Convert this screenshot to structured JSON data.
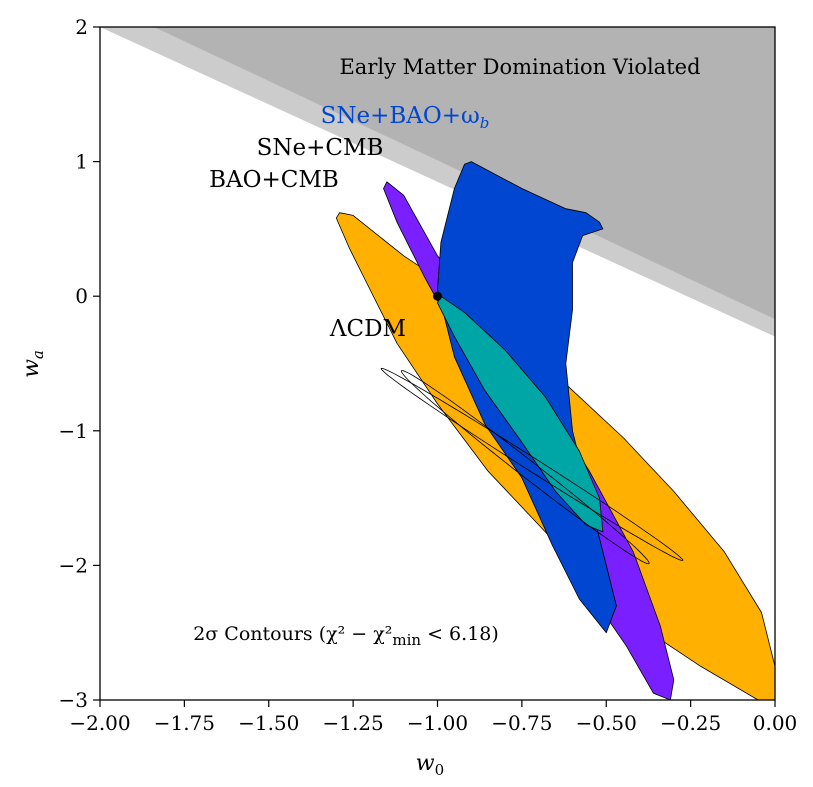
{
  "chart_data": {
    "type": "contour",
    "xlabel": "w",
    "xlabel_sub": "0",
    "ylabel": "w",
    "ylabel_sub": "a",
    "xlim": [
      -2.0,
      0.0
    ],
    "ylim": [
      -3,
      2
    ],
    "xticks": [
      -2.0,
      -1.75,
      -1.5,
      -1.25,
      -1.0,
      -0.75,
      -0.5,
      -0.25,
      0.0
    ],
    "xtick_labels": [
      "−2.00",
      "−1.75",
      "−1.50",
      "−1.25",
      "−1.00",
      "−0.75",
      "−0.50",
      "−0.25",
      "0.00"
    ],
    "yticks": [
      -3,
      -2,
      -1,
      0,
      1,
      2
    ],
    "ytick_labels": [
      "−3",
      "−2",
      "−1",
      "0",
      "1",
      "2"
    ],
    "excluded_region": {
      "label": "Early Matter Domination Violated",
      "light_boundary": [
        [
          -2.0,
          2.0
        ],
        [
          0.0,
          -0.3
        ]
      ],
      "dark_boundary": [
        [
          -1.84,
          2.0
        ],
        [
          0.0,
          -0.17
        ]
      ],
      "light_color": "#cccccc",
      "dark_color": "#b3b3b3"
    },
    "series": [
      {
        "name": "BAO+CMB",
        "color": "#ffb000",
        "polygon": [
          [
            -1.29,
            0.62
          ],
          [
            -1.25,
            0.6
          ],
          [
            -1.1,
            0.3
          ],
          [
            -0.92,
            0.0
          ],
          [
            -0.75,
            -0.35
          ],
          [
            -0.6,
            -0.7
          ],
          [
            -0.45,
            -1.05
          ],
          [
            -0.3,
            -1.45
          ],
          [
            -0.15,
            -1.9
          ],
          [
            -0.04,
            -2.35
          ],
          [
            0.0,
            -2.75
          ],
          [
            0.0,
            -3.0
          ],
          [
            -0.05,
            -3.0
          ],
          [
            -0.22,
            -2.75
          ],
          [
            -0.4,
            -2.45
          ],
          [
            -0.55,
            -2.1
          ],
          [
            -0.7,
            -1.7
          ],
          [
            -0.85,
            -1.3
          ],
          [
            -1.0,
            -0.8
          ],
          [
            -1.12,
            -0.35
          ],
          [
            -1.2,
            0.05
          ],
          [
            -1.26,
            0.35
          ],
          [
            -1.3,
            0.58
          ]
        ]
      },
      {
        "name": "SNe+CMB",
        "color": "#7a1fff",
        "polygon": [
          [
            -1.15,
            0.85
          ],
          [
            -1.1,
            0.75
          ],
          [
            -1.0,
            0.3
          ],
          [
            -0.85,
            -0.2
          ],
          [
            -0.7,
            -0.7
          ],
          [
            -0.55,
            -1.3
          ],
          [
            -0.42,
            -1.9
          ],
          [
            -0.34,
            -2.45
          ],
          [
            -0.3,
            -2.85
          ],
          [
            -0.31,
            -3.0
          ],
          [
            -0.36,
            -2.95
          ],
          [
            -0.44,
            -2.6
          ],
          [
            -0.55,
            -2.2
          ],
          [
            -0.68,
            -1.6
          ],
          [
            -0.8,
            -1.0
          ],
          [
            -0.92,
            -0.4
          ],
          [
            -1.04,
            0.15
          ],
          [
            -1.12,
            0.55
          ],
          [
            -1.16,
            0.8
          ]
        ]
      },
      {
        "name": "SNe+BAO+ω",
        "name_sub": "b",
        "color": "#0046d0",
        "polygon": [
          [
            -0.9,
            1.0
          ],
          [
            -0.75,
            0.8
          ],
          [
            -0.62,
            0.65
          ],
          [
            -0.56,
            0.62
          ],
          [
            -0.52,
            0.55
          ],
          [
            -0.51,
            0.5
          ],
          [
            -0.57,
            0.45
          ],
          [
            -0.6,
            0.25
          ],
          [
            -0.6,
            -0.1
          ],
          [
            -0.62,
            -0.5
          ],
          [
            -0.6,
            -1.0
          ],
          [
            -0.55,
            -1.5
          ],
          [
            -0.5,
            -2.0
          ],
          [
            -0.47,
            -2.3
          ],
          [
            -0.5,
            -2.5
          ],
          [
            -0.58,
            -2.25
          ],
          [
            -0.66,
            -1.85
          ],
          [
            -0.75,
            -1.35
          ],
          [
            -0.86,
            -0.95
          ],
          [
            -0.95,
            -0.45
          ],
          [
            -1.0,
            0.05
          ],
          [
            -0.99,
            0.4
          ],
          [
            -0.95,
            0.8
          ],
          [
            -0.92,
            0.98
          ]
        ]
      },
      {
        "name": "overlap",
        "color": "#00a6a6",
        "polygon": [
          [
            -0.99,
            0.0
          ],
          [
            -0.92,
            -0.12
          ],
          [
            -0.8,
            -0.4
          ],
          [
            -0.68,
            -0.75
          ],
          [
            -0.58,
            -1.15
          ],
          [
            -0.52,
            -1.5
          ],
          [
            -0.51,
            -1.75
          ],
          [
            -0.56,
            -1.7
          ],
          [
            -0.65,
            -1.45
          ],
          [
            -0.76,
            -1.05
          ],
          [
            -0.86,
            -0.7
          ],
          [
            -0.95,
            -0.3
          ],
          [
            -1.0,
            -0.05
          ]
        ]
      }
    ],
    "outline_ellipses": [
      {
        "center": [
          -0.72,
          -1.25
        ],
        "semi_major": 1.62,
        "semi_minor": 0.06,
        "angle_deg": -58
      },
      {
        "center": [
          -0.74,
          -1.27
        ],
        "semi_major": 1.55,
        "semi_minor": 0.07,
        "angle_deg": -63
      }
    ],
    "points": [
      {
        "name": "ΛCDM",
        "x": -1.0,
        "y": 0.0,
        "color": "#000000"
      }
    ],
    "annotations": {
      "lcdm_label": "ΛCDM",
      "contours_note": "2σ Contours (χ² − χ²",
      "contours_note_sub": "min",
      "contours_note_tail": " < 6.18)"
    }
  }
}
